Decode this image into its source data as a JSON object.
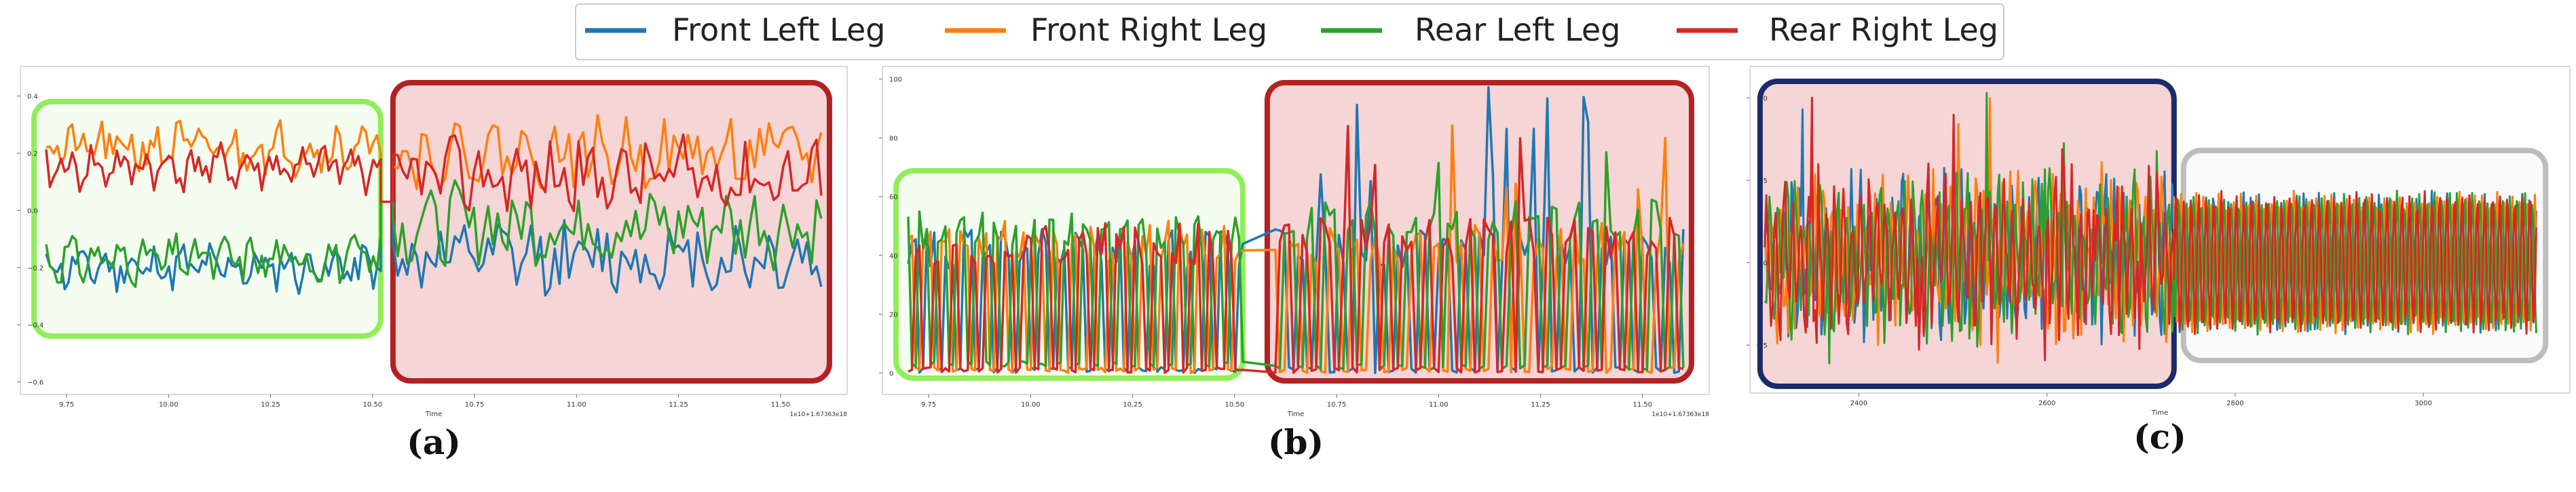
{
  "legend": {
    "entries": [
      {
        "label": "Front Left Leg",
        "color": "#1f77b4"
      },
      {
        "label": "Front Right Leg",
        "color": "#ff7f0e"
      },
      {
        "label": "Rear Left Leg",
        "color": "#2ca02c"
      },
      {
        "label": "Rear Right Leg",
        "color": "#d62728"
      }
    ],
    "placement": "top-center"
  },
  "highlight_colors": {
    "green_box": "#90ee5a",
    "red_box": "#b22222",
    "red_fill": "#f5d5d5",
    "green_fill": "#f4fdef",
    "navy_box": "#1a2a6c",
    "gray_box": "#bdbdbd"
  },
  "chart_data": [
    {
      "type": "line",
      "panel_label": "(a)",
      "xlabel": "Time",
      "offset_text": "1e10+1.67363e18",
      "x_ticks": [
        "9.75",
        "10.00",
        "10.25",
        "10.50",
        "10.75",
        "11.00",
        "11.25",
        "11.50"
      ],
      "y_ticks": [
        "0.4",
        "0.2",
        "0.0",
        "−0.2",
        "−0.4",
        "−0.6"
      ],
      "xlim": [
        9.65,
        11.65
      ],
      "ylim": [
        -0.62,
        0.48
      ],
      "grid": false,
      "regions": [
        {
          "x_start": 9.67,
          "x_end": 10.52,
          "style": "green"
        },
        {
          "x_start": 10.55,
          "x_end": 11.62,
          "style": "red"
        }
      ],
      "transition": {
        "x": [
          10.52,
          10.55
        ],
        "value": 0.03
      },
      "series": [
        {
          "name": "Front Left Leg",
          "segments": [
            {
              "x_start": 9.7,
              "x_end": 10.52,
              "base": -0.2,
              "amp": 0.06,
              "seed": 11
            },
            {
              "x_start": 10.55,
              "x_end": 11.6,
              "base": -0.17,
              "amp": 0.11,
              "seed": 12
            }
          ]
        },
        {
          "name": "Front Right Leg",
          "segments": [
            {
              "x_start": 9.7,
              "x_end": 10.52,
              "base": 0.22,
              "amp": 0.07,
              "seed": 21
            },
            {
              "x_start": 10.55,
              "x_end": 11.6,
              "base": 0.2,
              "amp": 0.1,
              "seed": 22
            }
          ]
        },
        {
          "name": "Rear Left Leg",
          "segments": [
            {
              "x_start": 9.7,
              "x_end": 10.52,
              "base": -0.17,
              "amp": 0.06,
              "seed": 31
            },
            {
              "x_start": 10.55,
              "x_end": 11.6,
              "base": -0.05,
              "amp": 0.12,
              "seed": 32
            }
          ]
        },
        {
          "name": "Rear Right Leg",
          "segments": [
            {
              "x_start": 9.7,
              "x_end": 10.52,
              "base": 0.15,
              "amp": 0.06,
              "seed": 41
            },
            {
              "x_start": 10.55,
              "x_end": 11.6,
              "base": 0.12,
              "amp": 0.11,
              "seed": 42
            }
          ]
        }
      ]
    },
    {
      "type": "line",
      "panel_label": "(b)",
      "xlabel": "Time",
      "offset_text": "1e10+1.67363e18",
      "x_ticks": [
        "9.75",
        "10.00",
        "10.25",
        "10.50",
        "10.75",
        "11.00",
        "11.25",
        "11.50"
      ],
      "y_ticks": [
        "100",
        "80",
        "60",
        "40",
        "20",
        "0"
      ],
      "xlim": [
        9.65,
        11.65
      ],
      "ylim": [
        -5,
        102
      ],
      "grid": false,
      "regions": [
        {
          "x_start": 9.67,
          "x_end": 10.52,
          "style": "green"
        },
        {
          "x_start": 10.58,
          "x_end": 11.62,
          "style": "red"
        }
      ],
      "series": [
        {
          "name": "Front Left Leg",
          "segments": [
            {
              "x_start": 9.7,
              "x_end": 10.52,
              "high": 42,
              "low": 0,
              "period": 0.045,
              "phase": 0.0
            },
            {
              "x_start": 10.6,
              "x_end": 11.6,
              "high": 42,
              "low": 0,
              "period": 0.05,
              "phase": 0.1
            }
          ]
        },
        {
          "name": "Front Right Leg",
          "segments": [
            {
              "x_start": 9.7,
              "x_end": 10.52,
              "high": 45,
              "low": 0,
              "period": 0.045,
              "phase": 0.25
            },
            {
              "x_start": 10.6,
              "x_end": 11.6,
              "high": 44,
              "low": 0,
              "period": 0.05,
              "phase": 0.35
            }
          ]
        },
        {
          "name": "Rear Left Leg",
          "segments": [
            {
              "x_start": 9.7,
              "x_end": 10.52,
              "high": 48,
              "low": 2,
              "period": 0.045,
              "phase": 0.5
            },
            {
              "x_start": 10.6,
              "x_end": 11.6,
              "high": 52,
              "low": 1,
              "period": 0.05,
              "phase": 0.6
            }
          ]
        },
        {
          "name": "Rear Right Leg",
          "segments": [
            {
              "x_start": 9.7,
              "x_end": 10.52,
              "high": 44,
              "low": 0,
              "period": 0.045,
              "phase": 0.75
            },
            {
              "x_start": 10.6,
              "x_end": 11.6,
              "high": 46,
              "low": 0,
              "period": 0.05,
              "phase": 0.85
            }
          ]
        }
      ]
    },
    {
      "type": "line",
      "panel_label": "(c)",
      "xlabel": "Time",
      "x_ticks": [
        "2400",
        "2600",
        "2800",
        "3000"
      ],
      "x_tick_values": [
        2400,
        2600,
        2800,
        3000
      ],
      "y_ticks": [
        "2.0",
        "1.5",
        "1.0",
        "0.5"
      ],
      "xlim": [
        2290,
        3150
      ],
      "ylim": [
        0.25,
        2.15
      ],
      "grid": false,
      "regions": [
        {
          "x_start": 2295,
          "x_end": 2735,
          "style": "navy"
        },
        {
          "x_start": 2745,
          "x_end": 3130,
          "style": "gray"
        }
      ],
      "series": [
        {
          "name": "Front Left Leg",
          "segments": [
            {
              "x_start": 2300,
              "x_end": 2735,
              "center": 1.05,
              "amp": 0.35,
              "period": 9,
              "phase": 0,
              "noise": 0.22
            },
            {
              "x_start": 2735,
              "x_end": 3120,
              "center": 1.0,
              "amp": 0.4,
              "period": 8,
              "phase": 0,
              "noise": 0.04
            }
          ]
        },
        {
          "name": "Front Right Leg",
          "segments": [
            {
              "x_start": 2300,
              "x_end": 2735,
              "center": 1.05,
              "amp": 0.35,
              "period": 9,
              "phase": 2,
              "noise": 0.22
            },
            {
              "x_start": 2735,
              "x_end": 3120,
              "center": 1.0,
              "amp": 0.4,
              "period": 8,
              "phase": 2,
              "noise": 0.04
            }
          ]
        },
        {
          "name": "Rear Left Leg",
          "segments": [
            {
              "x_start": 2300,
              "x_end": 2735,
              "center": 1.05,
              "amp": 0.35,
              "period": 9,
              "phase": 4,
              "noise": 0.22
            },
            {
              "x_start": 2735,
              "x_end": 3120,
              "center": 1.0,
              "amp": 0.4,
              "period": 8,
              "phase": 4,
              "noise": 0.04
            }
          ]
        },
        {
          "name": "Rear Right Leg",
          "segments": [
            {
              "x_start": 2300,
              "x_end": 2735,
              "center": 1.05,
              "amp": 0.35,
              "period": 9,
              "phase": 6,
              "noise": 0.22
            },
            {
              "x_start": 2735,
              "x_end": 3120,
              "center": 1.0,
              "amp": 0.4,
              "period": 8,
              "phase": 6,
              "noise": 0.04
            }
          ]
        }
      ]
    }
  ]
}
